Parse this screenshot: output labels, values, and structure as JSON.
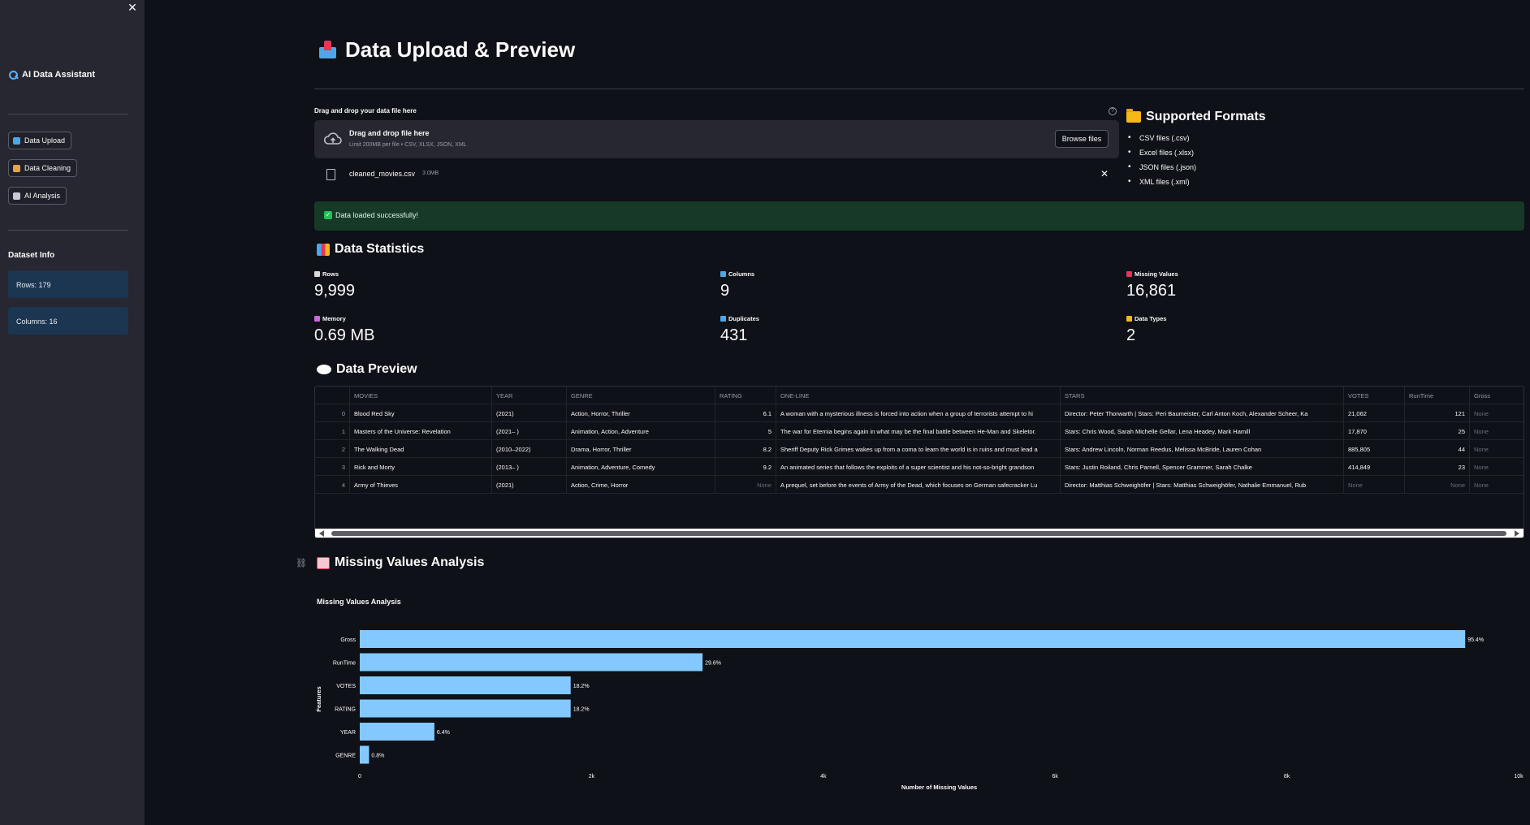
{
  "sidebar": {
    "close_symbol": "✕",
    "brand": "AI Data Assistant",
    "nav": [
      {
        "label": "Data Upload",
        "icon": "inbox-icon",
        "color": "#4aa8e8"
      },
      {
        "label": "Data Cleaning",
        "icon": "broom-icon",
        "color": "#e8a34a"
      },
      {
        "label": "AI Analysis",
        "icon": "robot-icon",
        "color": "#c9c9d3"
      }
    ],
    "dataset_info_title": "Dataset Info",
    "rows_info": "Rows: 179",
    "columns_info": "Columns: 16"
  },
  "page": {
    "title": "Data Upload & Preview"
  },
  "uploader": {
    "label": "Drag and drop your data file here",
    "help_symbol": "?",
    "drop_title": "Drag and drop file here",
    "drop_sub": "Limit 200MB per file • CSV, XLSX, JSON, XML",
    "browse_label": "Browse files",
    "file_name": "cleaned_movies.csv",
    "file_size": "3.0MB",
    "remove_symbol": "✕"
  },
  "formats": {
    "title": "Supported Formats",
    "items": [
      "CSV files (.csv)",
      "Excel files (.xlsx)",
      "JSON files (.json)",
      "XML files (.xml)"
    ]
  },
  "success": {
    "check": "✓",
    "message": "Data loaded successfully!"
  },
  "stats": {
    "title": "Data Statistics",
    "metrics": [
      {
        "label": "Rows",
        "value": "9,999",
        "icon": "page-icon",
        "color": "#d9d9d9"
      },
      {
        "label": "Columns",
        "value": "9",
        "icon": "chart-icon",
        "color": "#4aa8e8"
      },
      {
        "label": "Missing Values",
        "value": "16,861",
        "icon": "question-icon",
        "color": "#e8345a"
      },
      {
        "label": "Memory",
        "value": "0.69 MB",
        "icon": "floppy-icon",
        "color": "#c66ad8"
      },
      {
        "label": "Duplicates",
        "value": "431",
        "icon": "repeat-icon",
        "color": "#4aa8e8"
      },
      {
        "label": "Data Types",
        "value": "2",
        "icon": "tag-icon",
        "color": "#f5b915"
      }
    ]
  },
  "preview": {
    "title": "Data Preview",
    "columns": [
      "MOVIES",
      "YEAR",
      "GENRE",
      "RATING",
      "ONE-LINE",
      "STARS",
      "VOTES",
      "RunTime",
      "Gross"
    ],
    "rows": [
      {
        "idx": "0",
        "cells": [
          "Blood Red Sky",
          "(2021)",
          "Action, Horror, Thriller",
          "6.1",
          "A woman with a mysterious illness is forced into action when a group of terrorists attempt to hi",
          "Director: Peter Thorwarth |     Stars: Peri Baumeister,  Carl Anton Koch,  Alexander Scheer,  Ka",
          "21,062",
          "121",
          "None"
        ]
      },
      {
        "idx": "1",
        "cells": [
          "Masters of the Universe: Revelation",
          "(2021– )",
          "Animation, Action, Adventure",
          "5",
          "The war for Eternia begins again in what may be the final battle between He-Man and Skeletor.",
          "          Stars: Chris Wood,  Sarah Michelle Gellar,  Lena Headey,  Mark Hamill",
          "17,870",
          "25",
          "None"
        ]
      },
      {
        "idx": "2",
        "cells": [
          "The Walking Dead",
          "(2010–2022)",
          "Drama, Horror, Thriller",
          "8.2",
          "Sheriff Deputy Rick Grimes wakes up from a coma to learn the world is in ruins and must lead a",
          "          Stars: Andrew Lincoln,  Norman Reedus,  Melissa McBride,  Lauren Cohan",
          "885,805",
          "44",
          "None"
        ]
      },
      {
        "idx": "3",
        "cells": [
          "Rick and Morty",
          "(2013– )",
          "Animation, Adventure, Comedy",
          "9.2",
          "An animated series that follows the exploits of a super scientist and his not-so-bright grandson",
          "          Stars: Justin Roiland,  Chris Parnell,  Spencer Grammer,  Sarah Chalke",
          "414,849",
          "23",
          "None"
        ]
      },
      {
        "idx": "4",
        "cells": [
          "Army of Thieves",
          "(2021)",
          "Action, Crime, Horror",
          "None",
          "A prequel, set before the events of Army of the Dead, which focuses on German safecracker Lu",
          "Director: Matthias Schweighöfer |     Stars: Matthias Schweighöfer,  Nathalie Emmanuel,  Rub",
          "None",
          "None",
          "None"
        ]
      }
    ]
  },
  "missing": {
    "title": "Missing Values Analysis"
  },
  "chart_data": {
    "type": "bar",
    "orientation": "horizontal",
    "title": "Missing Values Analysis",
    "xlabel": "Number of Missing Values",
    "ylabel": "Features",
    "categories": [
      "Gross",
      "RunTime",
      "VOTES",
      "RATING",
      "YEAR",
      "GENRE"
    ],
    "values": [
      9539,
      2958,
      1820,
      1820,
      644,
      80
    ],
    "data_labels": [
      "95.4%",
      "29.6%",
      "18.2%",
      "18.2%",
      "6.4%",
      "0.8%"
    ],
    "xlim": [
      0,
      10000
    ],
    "xticks": [
      0,
      2000,
      4000,
      6000,
      8000,
      10000
    ],
    "xtick_labels": [
      "0",
      "2k",
      "4k",
      "6k",
      "8k",
      "10k"
    ],
    "bar_color": "#83c9ff",
    "grid": false
  }
}
